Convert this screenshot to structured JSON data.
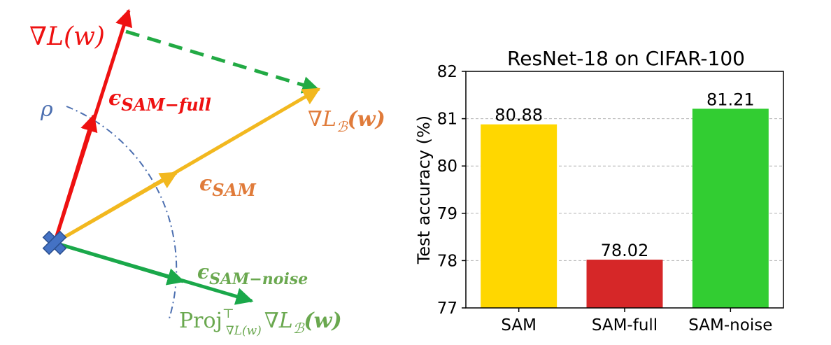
{
  "diagram": {
    "grad_full_label": "∇L(w)",
    "eps_full_label": "ϵ",
    "eps_full_sub": "SAM−full",
    "rho_label": "ρ",
    "eps_sam_label": "ϵ",
    "eps_sam_sub": "SAM",
    "grad_batch_label": "∇L",
    "grad_batch_sub": "ℬ",
    "grad_batch_arg": "(w)",
    "eps_noise_label": "ϵ",
    "eps_noise_sub": "SAM−noise",
    "proj_label": "Proj",
    "proj_sup": "⊤",
    "proj_sub": "∇L(w)",
    "proj_grad": "∇L",
    "proj_grad_sub": "ℬ",
    "proj_grad_arg": "(w)",
    "colors": {
      "full": "#ee1111",
      "sam": "#f2b81f",
      "noise": "#1aa84a",
      "dashed": "#22aa44",
      "arc": "#4c6fb0",
      "origin": "#4472c4",
      "label_orange": "#e07b3a",
      "label_green": "#6aa84f"
    }
  },
  "chart_data": {
    "type": "bar",
    "title": "ResNet-18 on CIFAR-100",
    "xlabel": "",
    "ylabel": "Test accuracy (%)",
    "categories": [
      "SAM",
      "SAM-full",
      "SAM-noise"
    ],
    "values": [
      80.88,
      78.02,
      81.21
    ],
    "value_labels": [
      "80.88",
      "78.02",
      "81.21"
    ],
    "colors": [
      "#ffd700",
      "#d62728",
      "#32cd32"
    ],
    "ylim": [
      77,
      82
    ],
    "yticks": [
      77,
      78,
      79,
      80,
      81,
      82
    ],
    "ytick_labels": [
      "77",
      "78",
      "79",
      "80",
      "81",
      "82"
    ],
    "grid": true
  }
}
